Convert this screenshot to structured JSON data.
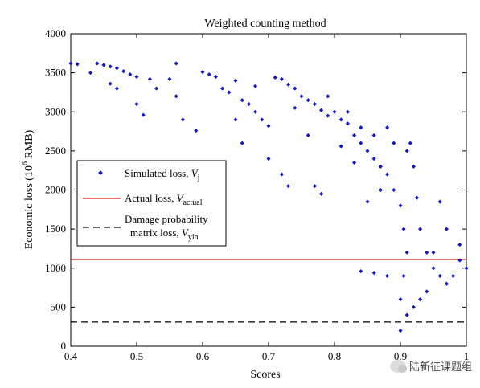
{
  "chart_data": {
    "type": "scatter",
    "title": "Weighted counting method",
    "xlabel": "Scores",
    "ylabel_main": "Economic loss (10",
    "ylabel_exp": "6",
    "ylabel_unit": " RMB)",
    "xlim": [
      0.4,
      1.0
    ],
    "ylim": [
      0,
      4000
    ],
    "xticks": [
      "0.4",
      "0.5",
      "0.6",
      "0.7",
      "0.8",
      "0.9",
      "1"
    ],
    "xtick_values": [
      0.4,
      0.5,
      0.6,
      0.7,
      0.8,
      0.9,
      1.0
    ],
    "yticks": [
      "0",
      "500",
      "1000",
      "1500",
      "2000",
      "2500",
      "3000",
      "3500",
      "4000"
    ],
    "ytick_values": [
      0,
      500,
      1000,
      1500,
      2000,
      2500,
      3000,
      3500,
      4000
    ],
    "grid": false,
    "legend_position": "middle-left",
    "series": [
      {
        "kind": "scatter",
        "color": "#1515c8",
        "legend_main": "Simulated loss, ",
        "legend_var": "V",
        "legend_sub": "j",
        "points": [
          [
            0.4,
            3620
          ],
          [
            0.41,
            3610
          ],
          [
            0.43,
            3500
          ],
          [
            0.44,
            3620
          ],
          [
            0.45,
            3600
          ],
          [
            0.46,
            3580
          ],
          [
            0.47,
            3560
          ],
          [
            0.48,
            3520
          ],
          [
            0.49,
            3480
          ],
          [
            0.5,
            3450
          ],
          [
            0.46,
            3360
          ],
          [
            0.47,
            3300
          ],
          [
            0.5,
            3100
          ],
          [
            0.51,
            2960
          ],
          [
            0.52,
            3420
          ],
          [
            0.53,
            3300
          ],
          [
            0.55,
            3420
          ],
          [
            0.56,
            3200
          ],
          [
            0.57,
            2900
          ],
          [
            0.56,
            3620
          ],
          [
            0.59,
            2760
          ],
          [
            0.6,
            3510
          ],
          [
            0.61,
            3480
          ],
          [
            0.62,
            3450
          ],
          [
            0.63,
            3300
          ],
          [
            0.64,
            3250
          ],
          [
            0.65,
            3400
          ],
          [
            0.66,
            3150
          ],
          [
            0.67,
            3100
          ],
          [
            0.68,
            3000
          ],
          [
            0.69,
            2900
          ],
          [
            0.7,
            2820
          ],
          [
            0.72,
            3420
          ],
          [
            0.73,
            3350
          ],
          [
            0.74,
            3300
          ],
          [
            0.75,
            3200
          ],
          [
            0.76,
            3150
          ],
          [
            0.77,
            3100
          ],
          [
            0.78,
            3020
          ],
          [
            0.79,
            2950
          ],
          [
            0.8,
            3000
          ],
          [
            0.81,
            2900
          ],
          [
            0.82,
            2850
          ],
          [
            0.83,
            2700
          ],
          [
            0.84,
            2600
          ],
          [
            0.85,
            2500
          ],
          [
            0.86,
            2400
          ],
          [
            0.87,
            2300
          ],
          [
            0.88,
            2200
          ],
          [
            0.89,
            2000
          ],
          [
            0.9,
            1800
          ],
          [
            0.905,
            1500
          ],
          [
            0.91,
            1200
          ],
          [
            0.905,
            900
          ],
          [
            0.9,
            600
          ],
          [
            0.9,
            200
          ],
          [
            0.91,
            2500
          ],
          [
            0.915,
            2600
          ],
          [
            0.92,
            2300
          ],
          [
            0.925,
            1900
          ],
          [
            0.93,
            1500
          ],
          [
            0.94,
            1200
          ],
          [
            0.95,
            1000
          ],
          [
            0.96,
            900
          ],
          [
            0.97,
            800
          ],
          [
            0.98,
            900
          ],
          [
            0.99,
            1100
          ],
          [
            1.0,
            1000
          ],
          [
            0.99,
            1300
          ],
          [
            0.97,
            1500
          ],
          [
            0.96,
            1850
          ],
          [
            0.95,
            1200
          ],
          [
            0.94,
            700
          ],
          [
            0.93,
            600
          ],
          [
            0.92,
            500
          ],
          [
            0.91,
            400
          ],
          [
            0.72,
            2200
          ],
          [
            0.73,
            2050
          ],
          [
            0.78,
            1950
          ],
          [
            0.85,
            1850
          ],
          [
            0.87,
            2000
          ],
          [
            0.86,
            940
          ],
          [
            0.84,
            960
          ],
          [
            0.88,
            900
          ],
          [
            0.83,
            2350
          ],
          [
            0.77,
            2050
          ],
          [
            0.7,
            2400
          ],
          [
            0.65,
            2900
          ],
          [
            0.66,
            2600
          ],
          [
            0.68,
            3330
          ],
          [
            0.71,
            3440
          ],
          [
            0.74,
            3050
          ],
          [
            0.79,
            3200
          ],
          [
            0.81,
            2560
          ],
          [
            0.89,
            2600
          ],
          [
            0.88,
            2800
          ],
          [
            0.86,
            2700
          ],
          [
            0.84,
            2800
          ],
          [
            0.82,
            3000
          ],
          [
            0.76,
            2700
          ]
        ]
      },
      {
        "kind": "hline",
        "y": 1110,
        "color": "#e02020",
        "dash": "none",
        "legend_main": "Actual loss, ",
        "legend_var": "V",
        "legend_sub": "actual"
      },
      {
        "kind": "hline",
        "y": 310,
        "color": "#000000",
        "dash": "8,5",
        "legend_main": "Damage probability",
        "legend_line2": "matrix loss, ",
        "legend_var": "V",
        "legend_sub": "yin"
      }
    ]
  },
  "watermark": {
    "text": "陆新征课题组",
    "icon": "wechat-icon"
  }
}
